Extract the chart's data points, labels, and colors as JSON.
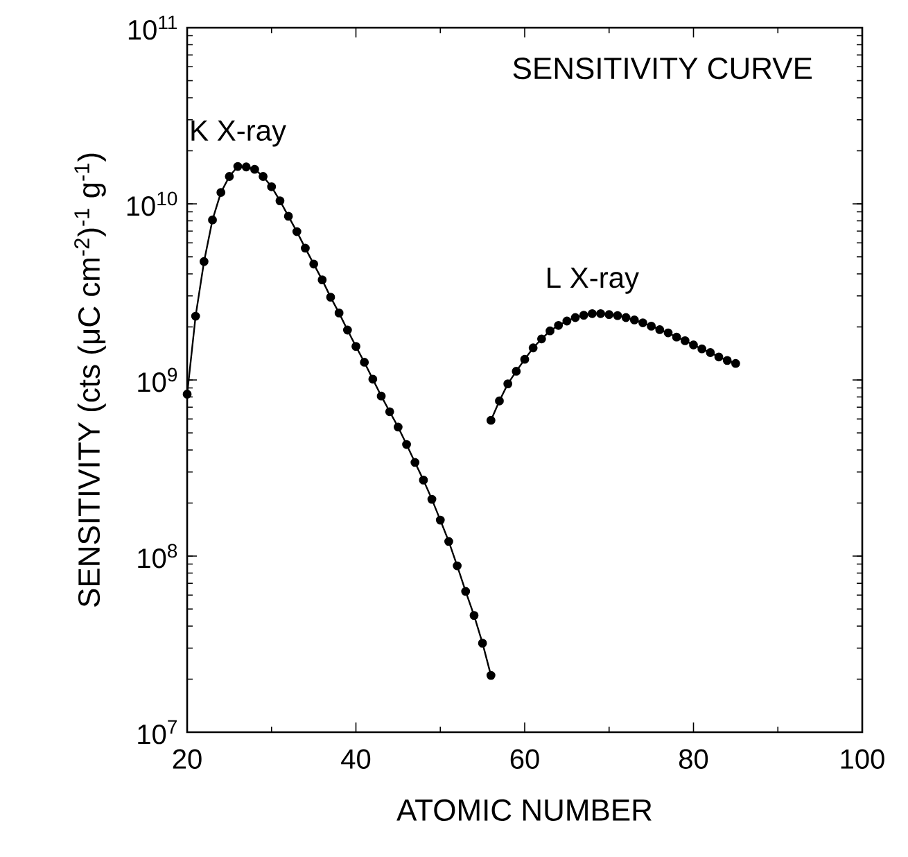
{
  "chart_data": {
    "type": "line",
    "title": "SENSITIVITY CURVE",
    "xlabel": "ATOMIC NUMBER",
    "ylabel": "SENSITIVITY (cts (μC cm$^{-2}$)$^{-1}$ g$^{-1}$)",
    "log": "y",
    "xlim": [
      20,
      100
    ],
    "ylim": [
      10000000.0,
      100000000000.0
    ],
    "xticks": [
      20,
      40,
      60,
      80,
      100
    ],
    "yticks": [
      {
        "value": 10000000.0,
        "label": "10$^{7}$"
      },
      {
        "value": 100000000.0,
        "label": "10$^{8}$"
      },
      {
        "value": 1000000000.0,
        "label": "10$^{9}$"
      },
      {
        "value": 10000000000.0,
        "label": "10$^{10}$"
      },
      {
        "value": 100000000000.0,
        "label": "10$^{11}$"
      }
    ],
    "marker": "circle",
    "line_style": "solid",
    "series": [
      {
        "name": "K X-ray",
        "color": "#000000",
        "x": [
          20,
          21,
          22,
          23,
          24,
          25,
          26,
          27,
          28,
          29,
          30,
          31,
          32,
          33,
          34,
          35,
          36,
          37,
          38,
          39,
          40,
          41,
          42,
          43,
          44,
          45,
          46,
          47,
          48,
          49,
          50,
          51,
          52,
          53,
          54,
          55,
          56
        ],
        "values": [
          830000000.0,
          2300000000.0,
          4700000000.0,
          8100000000.0,
          11600000000.0,
          14300000000.0,
          16300000000.0,
          16200000000.0,
          15700000000.0,
          14300000000.0,
          12500000000.0,
          10400000000.0,
          8500000000.0,
          6950000000.0,
          5600000000.0,
          4550000000.0,
          3700000000.0,
          2950000000.0,
          2400000000.0,
          1920000000.0,
          1550000000.0,
          1260000000.0,
          1010000000.0,
          810000000.0,
          660000000.0,
          540000000.0,
          430000000.0,
          340000000.0,
          270000000.0,
          210000000.0,
          160000000.0,
          121000000.0,
          88000000.0,
          63000000.0,
          46000000.0,
          32000000.0,
          21000000.0
        ]
      },
      {
        "name": "L X-ray",
        "color": "#000000",
        "x": [
          56,
          57,
          58,
          59,
          60,
          61,
          62,
          63,
          64,
          65,
          66,
          67,
          68,
          69,
          70,
          71,
          72,
          73,
          74,
          75,
          76,
          77,
          78,
          79,
          80,
          81,
          82,
          83,
          84,
          85
        ],
        "values": [
          590000000.0,
          760000000.0,
          950000000.0,
          1120000000.0,
          1310000000.0,
          1520000000.0,
          1710000000.0,
          1900000000.0,
          2040000000.0,
          2160000000.0,
          2260000000.0,
          2330000000.0,
          2380000000.0,
          2380000000.0,
          2350000000.0,
          2320000000.0,
          2260000000.0,
          2190000000.0,
          2110000000.0,
          2020000000.0,
          1930000000.0,
          1850000000.0,
          1750000000.0,
          1670000000.0,
          1580000000.0,
          1500000000.0,
          1430000000.0,
          1350000000.0,
          1290000000.0,
          1240000000.0
        ]
      }
    ]
  }
}
